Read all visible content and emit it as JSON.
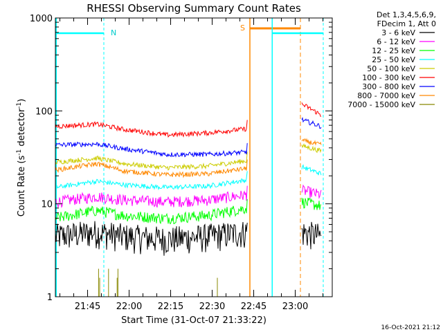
{
  "chart_data": {
    "type": "line",
    "title": "RHESSI Observing Summary Count Rates",
    "xlabel": "Start Time (31-Oct-07 21:33:22)",
    "ylabel_main": "Count Rate (s",
    "ylabel_sup1": "-1",
    "ylabel_mid": " detector",
    "ylabel_sup2": "-1",
    "ylabel_end": ")",
    "yscale": "log",
    "ylim": [
      1,
      1000
    ],
    "xlim_minutes": [
      0,
      100
    ],
    "x_ticks": [
      {
        "label": "21:45",
        "minutes": 11.63
      },
      {
        "label": "22:00",
        "minutes": 26.63
      },
      {
        "label": "22:15",
        "minutes": 41.63
      },
      {
        "label": "22:30",
        "minutes": 56.63
      },
      {
        "label": "22:45",
        "minutes": 71.63
      },
      {
        "label": "23:00",
        "minutes": 86.63
      }
    ],
    "y_ticks": [
      {
        "label": "1",
        "value": 1
      },
      {
        "label": "10",
        "value": 10
      },
      {
        "label": "100",
        "value": 100
      },
      {
        "label": "1000",
        "value": 1000
      }
    ],
    "legend": {
      "header1": "Det 1,3,4,5,6,9,",
      "header2": "FDecim 1, Att 0",
      "position": "top-right outside"
    },
    "series": [
      {
        "name": "3 - 6 keV",
        "color": "#000000",
        "segA": [
          [
            0,
            4.5
          ],
          [
            15,
            5.0
          ],
          [
            25,
            4.5
          ],
          [
            40,
            4.2
          ],
          [
            55,
            4.5
          ],
          [
            69,
            5.0
          ]
        ],
        "segB": [
          [
            89,
            5.0
          ],
          [
            96,
            4.5
          ]
        ]
      },
      {
        "name": "6 - 12 keV",
        "color": "#ff00ff",
        "segA": [
          [
            0,
            10.5
          ],
          [
            15,
            12.0
          ],
          [
            25,
            11.0
          ],
          [
            40,
            10.5
          ],
          [
            55,
            11.0
          ],
          [
            69,
            12.5
          ]
        ],
        "segB": [
          [
            89,
            14.0
          ],
          [
            96,
            12.5
          ]
        ]
      },
      {
        "name": "12 - 25 keV",
        "color": "#00ff00",
        "segA": [
          [
            0,
            7.0
          ],
          [
            15,
            8.5
          ],
          [
            25,
            7.5
          ],
          [
            40,
            7.0
          ],
          [
            55,
            7.5
          ],
          [
            69,
            9.0
          ]
        ],
        "segB": [
          [
            89,
            10.5
          ],
          [
            96,
            9.5
          ]
        ]
      },
      {
        "name": "25 - 50 keV",
        "color": "#00ffff",
        "segA": [
          [
            0,
            15.0
          ],
          [
            15,
            17.5
          ],
          [
            25,
            16.0
          ],
          [
            40,
            15.0
          ],
          [
            55,
            15.5
          ],
          [
            69,
            18.0
          ]
        ],
        "segB": [
          [
            89,
            25.0
          ],
          [
            96,
            21.0
          ]
        ]
      },
      {
        "name": "50 - 100 keV",
        "color": "#cccc00",
        "segA": [
          [
            0,
            28.0
          ],
          [
            15,
            31.0
          ],
          [
            25,
            27.0
          ],
          [
            40,
            24.5
          ],
          [
            55,
            25.5
          ],
          [
            69,
            29.0
          ]
        ],
        "segB": [
          [
            89,
            42.0
          ],
          [
            96,
            37.0
          ]
        ]
      },
      {
        "name": "100 - 300 keV",
        "color": "#ff0000",
        "segA": [
          [
            0,
            68.0
          ],
          [
            15,
            72.0
          ],
          [
            25,
            63.0
          ],
          [
            40,
            55.0
          ],
          [
            55,
            58.0
          ],
          [
            69,
            64.0
          ]
        ],
        "segB": [
          [
            89,
            118.0
          ],
          [
            96,
            90.0
          ]
        ]
      },
      {
        "name": "300 - 800 keV",
        "color": "#0000ff",
        "segA": [
          [
            0,
            43.0
          ],
          [
            15,
            44.0
          ],
          [
            25,
            39.0
          ],
          [
            40,
            34.0
          ],
          [
            55,
            34.0
          ],
          [
            69,
            36.0
          ]
        ],
        "segB": [
          [
            89,
            80.0
          ],
          [
            96,
            68.0
          ]
        ]
      },
      {
        "name": "800 - 7000 keV",
        "color": "#ff8800",
        "segA": [
          [
            0,
            23.0
          ],
          [
            15,
            27.0
          ],
          [
            25,
            22.5
          ],
          [
            40,
            20.5
          ],
          [
            55,
            21.0
          ],
          [
            69,
            24.0
          ]
        ],
        "segB": [
          [
            89,
            48.0
          ],
          [
            96,
            43.0
          ]
        ]
      },
      {
        "name": "7000 - 15000 keV",
        "color": "#888800",
        "segA": [],
        "segB": []
      }
    ],
    "annotations": {
      "night_label": "N",
      "saa_label": "S"
    }
  },
  "timestamp": "16-Oct-2021 21:12"
}
